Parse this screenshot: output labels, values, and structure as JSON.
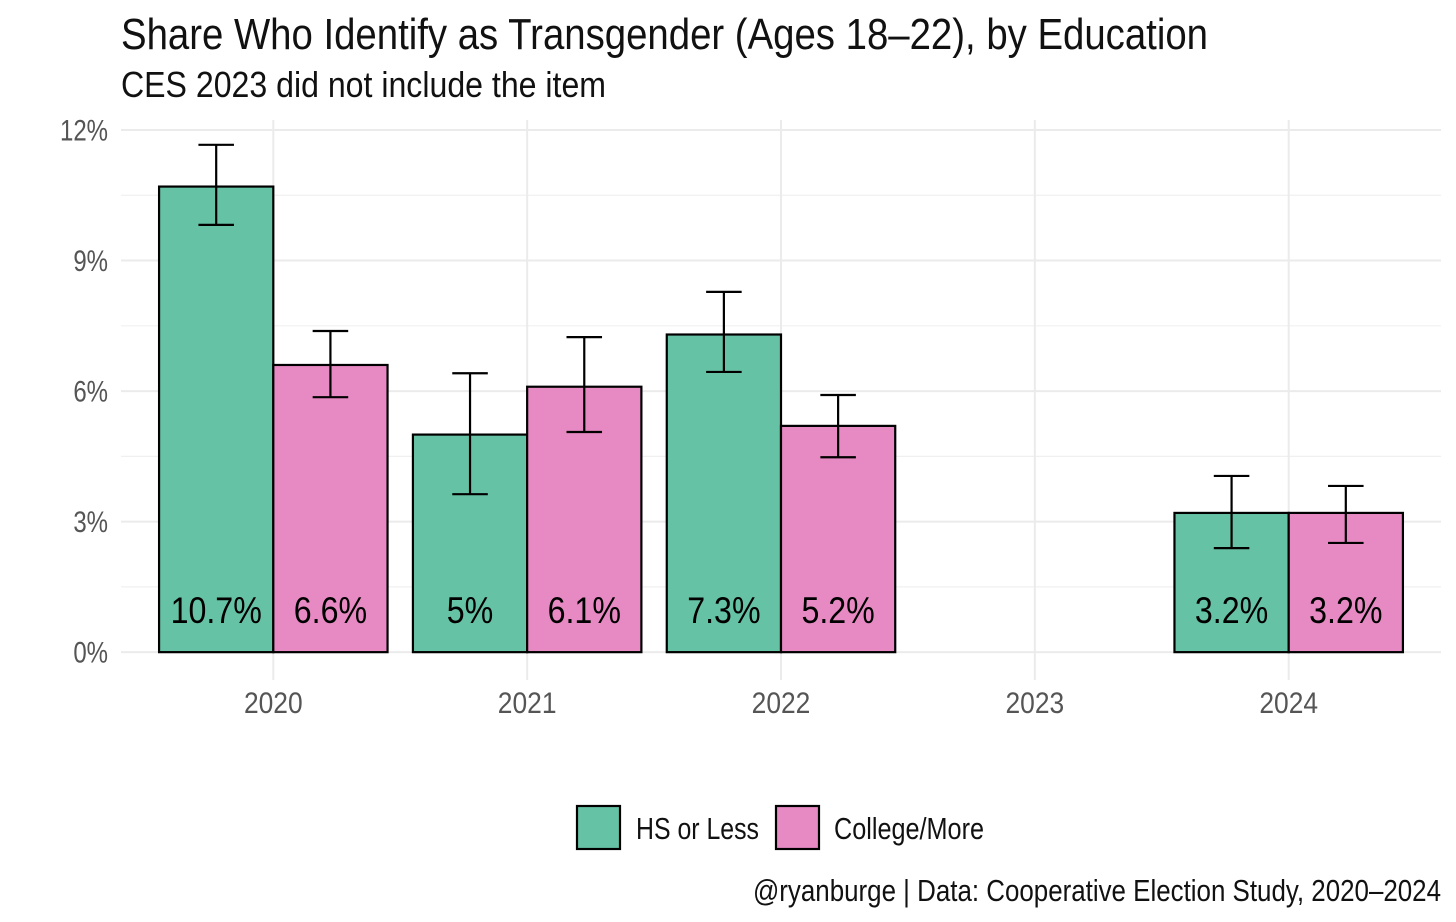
{
  "chart_data": {
    "type": "bar",
    "title": "Share Who Identify as Transgender (Ages 18–22), by Education",
    "subtitle": "CES 2023 did not include the item",
    "caption": "@ryanburge | Data: Cooperative Election Study, 2020–2024",
    "xlabel": "",
    "ylabel": "",
    "categories": [
      "2020",
      "2021",
      "2022",
      "2023",
      "2024"
    ],
    "series": [
      {
        "name": "HS or Less",
        "color": "#66C2A5",
        "values": [
          10.7,
          5,
          7.3,
          null,
          3.2
        ],
        "labels": [
          "10.7%",
          "5%",
          "7.3%",
          null,
          "3.2%"
        ],
        "ci_low": [
          9.82,
          3.63,
          6.44,
          null,
          2.39
        ],
        "ci_high": [
          11.66,
          6.41,
          8.28,
          null,
          4.05
        ]
      },
      {
        "name": "College/More",
        "color": "#E78AC3",
        "values": [
          6.6,
          6.1,
          5.2,
          null,
          3.2
        ],
        "labels": [
          "6.6%",
          "6.1%",
          "5.2%",
          null,
          "3.2%"
        ],
        "ci_low": [
          5.86,
          5.06,
          4.48,
          null,
          2.51
        ],
        "ci_high": [
          7.38,
          7.24,
          5.91,
          null,
          3.82
        ]
      }
    ],
    "yticks": [
      0,
      3,
      6,
      9,
      12
    ],
    "ytick_labels": [
      "0%",
      "3%",
      "6%",
      "9%",
      "12%"
    ],
    "ylim": [
      -0.64,
      12.23
    ],
    "grid": true,
    "legend_position": "bottom"
  },
  "colors": {
    "bar_outline": "#000000",
    "grid": "#EBEBEB",
    "axis_text": "#555555",
    "text": "#111111"
  }
}
